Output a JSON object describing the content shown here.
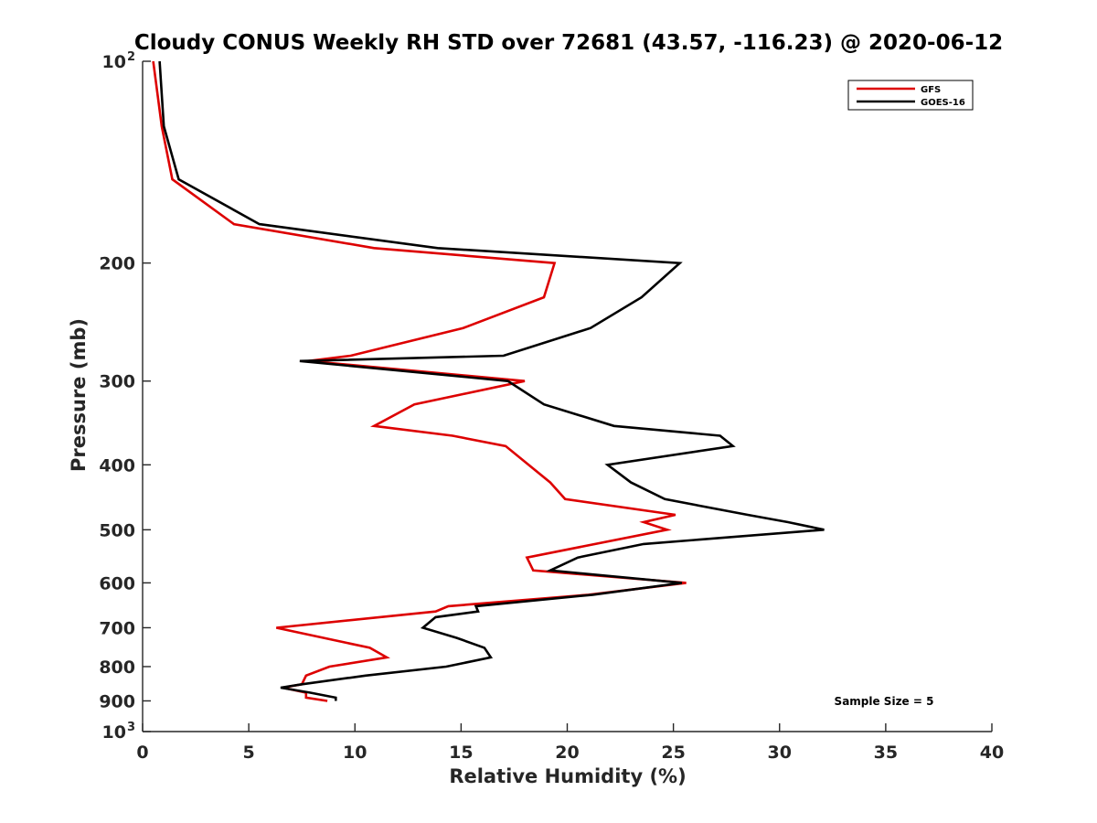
{
  "chart_data": {
    "type": "line",
    "title": "Cloudy CONUS Weekly RH STD over 72681 (43.57, -116.23) @ 2020-06-12",
    "xlabel": "Relative Humidity (%)",
    "ylabel": "Pressure (mb)",
    "xlim": [
      0,
      40
    ],
    "ylim": [
      100,
      1000
    ],
    "y_scale": "log",
    "y_inverted": true,
    "x_ticks": [
      0,
      5,
      10,
      15,
      20,
      25,
      30,
      35,
      40
    ],
    "x_tick_labels": [
      "0",
      "5",
      "10",
      "15",
      "20",
      "25",
      "30",
      "35",
      "40"
    ],
    "y_ticks": [
      {
        "value": 100,
        "base": "10",
        "sup": "2"
      },
      {
        "value": 200,
        "label": "200"
      },
      {
        "value": 300,
        "label": "300"
      },
      {
        "value": 400,
        "label": "400"
      },
      {
        "value": 500,
        "label": "500"
      },
      {
        "value": 600,
        "label": "600"
      },
      {
        "value": 700,
        "label": "700"
      },
      {
        "value": 800,
        "label": "800"
      },
      {
        "value": 900,
        "label": "900"
      },
      {
        "value": 1000,
        "base": "10",
        "sup": "3"
      }
    ],
    "grid": false,
    "legend_position": "top-right",
    "annotation": "Sample Size = 5",
    "series": [
      {
        "name": "GFS",
        "color": "#dd0000",
        "points": [
          [
            0.5,
            100
          ],
          [
            0.9,
            125
          ],
          [
            1.4,
            150
          ],
          [
            4.3,
            175
          ],
          [
            10.9,
            190
          ],
          [
            19.4,
            200
          ],
          [
            18.9,
            225
          ],
          [
            15.1,
            250
          ],
          [
            9.8,
            275
          ],
          [
            7.8,
            280
          ],
          [
            18.0,
            300
          ],
          [
            12.8,
            325
          ],
          [
            10.9,
            350
          ],
          [
            14.6,
            362
          ],
          [
            17.1,
            375
          ],
          [
            19.2,
            425
          ],
          [
            19.9,
            450
          ],
          [
            25.1,
            475
          ],
          [
            23.6,
            487
          ],
          [
            24.7,
            500
          ],
          [
            18.1,
            550
          ],
          [
            18.4,
            575
          ],
          [
            25.6,
            600
          ],
          [
            21.0,
            625
          ],
          [
            14.4,
            650
          ],
          [
            13.8,
            662
          ],
          [
            6.3,
            700
          ],
          [
            10.7,
            750
          ],
          [
            11.5,
            775
          ],
          [
            8.8,
            800
          ],
          [
            7.7,
            825
          ],
          [
            7.5,
            850
          ],
          [
            6.6,
            860
          ],
          [
            7.7,
            875
          ],
          [
            7.7,
            890
          ],
          [
            8.7,
            900
          ]
        ]
      },
      {
        "name": "GOES-16",
        "color": "#000000",
        "points": [
          [
            0.8,
            100
          ],
          [
            1.0,
            125
          ],
          [
            1.7,
            150
          ],
          [
            5.5,
            175
          ],
          [
            13.9,
            190
          ],
          [
            25.3,
            200
          ],
          [
            23.5,
            225
          ],
          [
            21.1,
            250
          ],
          [
            17.0,
            275
          ],
          [
            7.4,
            280
          ],
          [
            17.2,
            300
          ],
          [
            18.9,
            325
          ],
          [
            22.2,
            350
          ],
          [
            27.2,
            362
          ],
          [
            27.8,
            375
          ],
          [
            21.9,
            400
          ],
          [
            23.0,
            425
          ],
          [
            24.6,
            450
          ],
          [
            28.5,
            475
          ],
          [
            30.4,
            487
          ],
          [
            32.1,
            500
          ],
          [
            23.6,
            525
          ],
          [
            20.5,
            550
          ],
          [
            19.2,
            575
          ],
          [
            25.4,
            600
          ],
          [
            21.2,
            625
          ],
          [
            15.7,
            650
          ],
          [
            15.8,
            662
          ],
          [
            13.8,
            675
          ],
          [
            13.2,
            700
          ],
          [
            14.8,
            725
          ],
          [
            16.1,
            750
          ],
          [
            16.4,
            775
          ],
          [
            14.3,
            800
          ],
          [
            10.5,
            825
          ],
          [
            7.5,
            850
          ],
          [
            6.5,
            860
          ],
          [
            7.9,
            875
          ],
          [
            9.1,
            890
          ],
          [
            9.1,
            900
          ]
        ]
      }
    ]
  }
}
